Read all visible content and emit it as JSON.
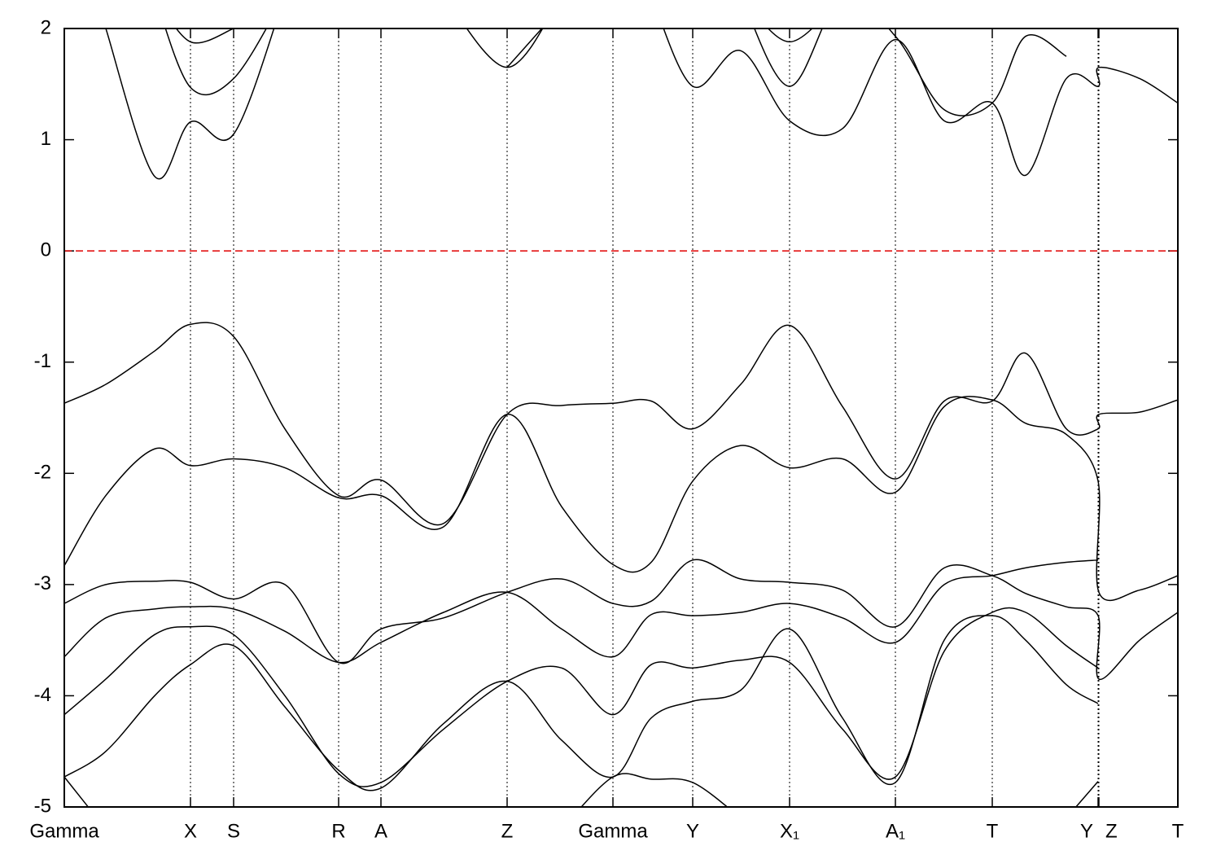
{
  "chart_data": {
    "type": "line",
    "x": [
      0,
      0.51,
      1.11,
      1.55,
      2.08,
      2.71,
      3.37,
      3.89,
      4.66,
      5.44,
      6.11,
      6.74,
      7.21,
      7.72,
      8.31,
      8.91,
      9.56,
      10.21,
      10.81,
      11.4,
      11.81,
      12.31,
      12.7,
      12.71,
      13.21,
      13.68
    ],
    "series": [
      {
        "color": "#000000",
        "values": [
          -1.37,
          -1.2,
          -0.9,
          -0.66,
          -0.77,
          -1.6,
          -2.2,
          -2.06,
          -2.45,
          -1.47,
          -1.39,
          -1.37,
          -1.35,
          -1.6,
          -1.2,
          -0.67,
          -1.4,
          -2.05,
          -1.35,
          -1.35,
          -0.92,
          -1.6,
          -1.6,
          -1.47,
          -1.45,
          -1.34
        ]
      },
      {
        "color": "#000000",
        "values": [
          -2.83,
          -2.2,
          -1.78,
          -1.93,
          -1.87,
          -1.95,
          -2.22,
          -2.2,
          -2.48,
          -1.47,
          -2.3,
          -2.82,
          -2.8,
          -2.07,
          -1.75,
          -1.95,
          -1.87,
          -2.17,
          -1.4,
          -1.34,
          -1.55,
          -1.65,
          -2.07,
          -3.07,
          -3.05,
          -2.92
        ]
      },
      {
        "color": "#000000",
        "values": [
          -3.17,
          -3.0,
          -2.97,
          -2.98,
          -3.13,
          -3.0,
          -3.7,
          -3.4,
          -3.3,
          -3.07,
          -2.95,
          -3.17,
          -3.15,
          -2.78,
          -2.95,
          -2.98,
          -3.05,
          -3.38,
          -2.85,
          -2.92,
          -3.08,
          -3.2,
          -3.28,
          -3.85,
          -3.5,
          -3.25
        ]
      },
      {
        "color": "#000000",
        "values": [
          -3.65,
          -3.3,
          -3.22,
          -3.2,
          -3.22,
          -3.42,
          -3.7,
          -3.52,
          -3.25,
          -3.07,
          -3.4,
          -3.65,
          -3.27,
          -3.28,
          -3.25,
          -3.17,
          -3.3,
          -3.52,
          -3.0,
          -2.92,
          -2.85,
          -2.8,
          -2.78,
          null,
          null,
          null
        ]
      },
      {
        "color": "#000000",
        "values": [
          -4.17,
          -3.85,
          -3.45,
          -3.38,
          -3.45,
          -4.0,
          -4.7,
          -4.78,
          -4.3,
          -3.87,
          -3.75,
          -4.17,
          -3.72,
          -3.75,
          -3.68,
          -3.7,
          -4.3,
          -4.73,
          -3.6,
          -3.25,
          -3.25,
          -3.55,
          -3.75,
          null,
          null,
          null
        ]
      },
      {
        "color": "#000000",
        "values": [
          -4.73,
          -4.5,
          -4.0,
          -3.72,
          -3.55,
          -4.1,
          -4.67,
          -4.83,
          -4.25,
          -3.87,
          -4.4,
          -4.73,
          -4.2,
          -4.05,
          -3.95,
          -3.4,
          -4.2,
          -4.78,
          -3.5,
          -3.28,
          -3.5,
          -3.9,
          -4.07,
          null,
          null,
          null
        ]
      },
      {
        "color": "#000000",
        "values": [
          -4.73,
          -5.2,
          null,
          null,
          null,
          null,
          null,
          null,
          null,
          null,
          -5.2,
          -4.73,
          -4.75,
          -4.78,
          -5.1,
          null,
          null,
          null,
          null,
          null,
          null,
          -5.1,
          -4.77,
          null,
          null,
          null
        ]
      },
      {
        "color": "#000000",
        "values": [
          null,
          2.0,
          0.67,
          1.16,
          1.05,
          2.3,
          null,
          null,
          null,
          1.65,
          2.2,
          null,
          2.3,
          1.48,
          1.8,
          1.17,
          1.1,
          1.9,
          1.17,
          1.33,
          0.68,
          1.55,
          1.48,
          1.65,
          1.55,
          1.33
        ]
      },
      {
        "color": "#000000",
        "values": [
          null,
          null,
          2.3,
          1.47,
          1.55,
          2.3,
          null,
          null,
          2.3,
          1.65,
          2.3,
          null,
          null,
          null,
          2.3,
          1.48,
          2.3,
          1.93,
          1.27,
          1.33,
          1.93,
          1.75,
          null,
          null,
          null,
          null
        ]
      },
      {
        "color": "#000000",
        "values": [
          null,
          null,
          2.3,
          1.88,
          2.0,
          null,
          null,
          null,
          null,
          null,
          null,
          null,
          null,
          null,
          2.3,
          1.88,
          2.3,
          null,
          null,
          null,
          null,
          null,
          null,
          null,
          null,
          null
        ]
      }
    ],
    "xlim": [
      0,
      13.68
    ],
    "xticks": [
      {
        "value": 0,
        "label": "Gamma"
      },
      {
        "value": 1.55,
        "label": "X"
      },
      {
        "value": 2.08,
        "label": "S"
      },
      {
        "value": 3.37,
        "label": "R"
      },
      {
        "value": 3.89,
        "label": "A"
      },
      {
        "value": 5.44,
        "label": "Z"
      },
      {
        "value": 6.74,
        "label": "Gamma"
      },
      {
        "value": 7.72,
        "label": "Y"
      },
      {
        "value": 8.91,
        "label": "X₁"
      },
      {
        "value": 10.21,
        "label": "A₁"
      },
      {
        "value": 11.4,
        "label": "T"
      },
      {
        "value": 12.7,
        "label": "Y"
      },
      {
        "value": 12.71,
        "label": "Z"
      },
      {
        "value": 13.68,
        "label": "T"
      }
    ],
    "ylim": [
      -5,
      2
    ],
    "yticks": [
      -5,
      -4,
      -3,
      -2,
      -1,
      0,
      1,
      2
    ],
    "grid": true,
    "reference_line": 0,
    "reference_color": "#e00000"
  }
}
